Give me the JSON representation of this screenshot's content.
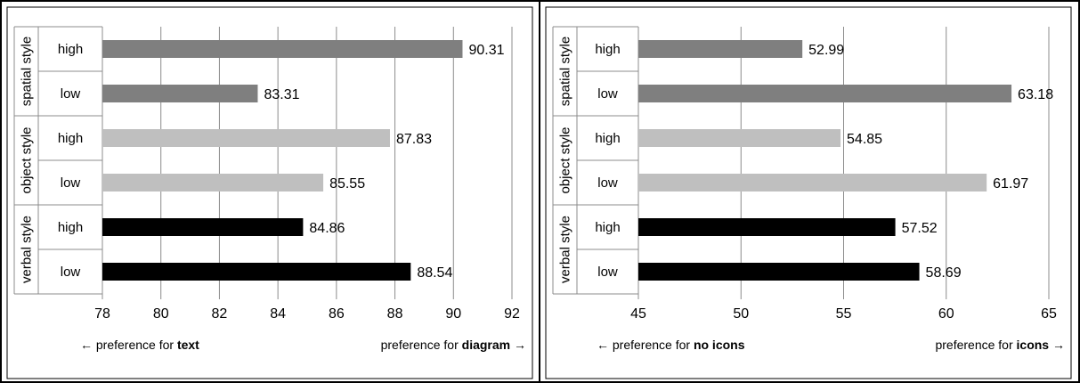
{
  "colors": {
    "spatial": "#7f7f7f",
    "object": "#bfbfbf",
    "verbal": "#000000",
    "grid": "#8c8c8c",
    "frame": "#000000"
  },
  "chart_data": [
    {
      "type": "bar",
      "orientation": "horizontal",
      "groups": [
        "spatial style",
        "object style",
        "verbal style"
      ],
      "categories": [
        "high",
        "low",
        "high",
        "low",
        "high",
        "low"
      ],
      "group_of_category": [
        0,
        0,
        1,
        1,
        2,
        2
      ],
      "values": [
        90.31,
        83.31,
        87.83,
        85.55,
        84.86,
        88.54
      ],
      "value_labels": [
        "90.31",
        "83.31",
        "87.83",
        "85.55",
        "84.86",
        "88.54"
      ],
      "xlim": [
        78,
        92
      ],
      "xticks": [
        78,
        80,
        82,
        84,
        86,
        88,
        90,
        92
      ],
      "xtick_labels": [
        "78",
        "80",
        "82",
        "84",
        "86",
        "88",
        "90",
        "92"
      ],
      "grid": true,
      "left_caption": {
        "prefix": "← preference for ",
        "bold": "text",
        "suffix": ""
      },
      "right_caption": {
        "prefix": "preference for ",
        "bold": "diagram",
        "suffix": " →"
      }
    },
    {
      "type": "bar",
      "orientation": "horizontal",
      "groups": [
        "spatial style",
        "object style",
        "verbal style"
      ],
      "categories": [
        "high",
        "low",
        "high",
        "low",
        "high",
        "low"
      ],
      "group_of_category": [
        0,
        0,
        1,
        1,
        2,
        2
      ],
      "values": [
        52.99,
        63.18,
        54.85,
        61.97,
        57.52,
        58.69
      ],
      "value_labels": [
        "52.99",
        "63.18",
        "54.85",
        "61.97",
        "57.52",
        "58.69"
      ],
      "xlim": [
        45,
        65
      ],
      "xticks": [
        45,
        50,
        55,
        60,
        65
      ],
      "xtick_labels": [
        "45",
        "50",
        "55",
        "60",
        "65"
      ],
      "grid": true,
      "left_caption": {
        "prefix": "← preference for ",
        "bold": "no icons",
        "suffix": ""
      },
      "right_caption": {
        "prefix": "preference for ",
        "bold": "icons",
        "suffix": " →"
      }
    }
  ]
}
